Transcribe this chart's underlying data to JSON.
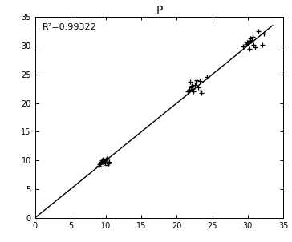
{
  "title": "P",
  "r2_text": "R²=0.99322",
  "xlim": [
    0,
    35
  ],
  "ylim": [
    0,
    35
  ],
  "xticks": [
    0,
    5,
    10,
    15,
    20,
    25,
    30,
    35
  ],
  "yticks": [
    0,
    5,
    10,
    15,
    20,
    25,
    30,
    35
  ],
  "line_x": [
    0,
    33.5
  ],
  "line_y": [
    0,
    33.5
  ],
  "cluster1_x": [
    9.0,
    9.1,
    9.2,
    9.3,
    9.4,
    9.5,
    9.6,
    9.7,
    9.8,
    9.9,
    10.0,
    10.1,
    10.2,
    10.3,
    10.4
  ],
  "cluster1_y": [
    9.1,
    9.3,
    9.5,
    9.8,
    10.0,
    9.4,
    10.1,
    9.7,
    9.9,
    9.6,
    10.2,
    9.2,
    10.3,
    9.4,
    9.8
  ],
  "cluster2_x": [
    21.5,
    21.8,
    22.0,
    22.1,
    22.2,
    22.5,
    22.7,
    23.0,
    23.2,
    23.5,
    22.3,
    21.9,
    22.8,
    23.3,
    24.3
  ],
  "cluster2_y": [
    22.0,
    22.3,
    22.8,
    23.0,
    22.5,
    23.2,
    23.5,
    22.7,
    23.8,
    21.8,
    22.1,
    23.7,
    24.0,
    22.2,
    24.5
  ],
  "cluster3_x": [
    29.3,
    29.6,
    29.8,
    30.0,
    30.2,
    30.4,
    30.6,
    30.8,
    31.0,
    30.3,
    29.9,
    30.7,
    31.5,
    32.0,
    32.3
  ],
  "cluster3_y": [
    29.8,
    30.0,
    30.3,
    30.5,
    29.5,
    30.8,
    31.0,
    30.2,
    29.7,
    31.2,
    30.6,
    31.5,
    32.5,
    30.1,
    32.1
  ],
  "marker_color": "#000000",
  "line_color": "#000000",
  "bg_color": "#ffffff",
  "title_fontsize": 10,
  "annot_fontsize": 8,
  "tick_fontsize": 7,
  "marker_size": 5,
  "marker_lw": 0.9,
  "line_lw": 1.0
}
